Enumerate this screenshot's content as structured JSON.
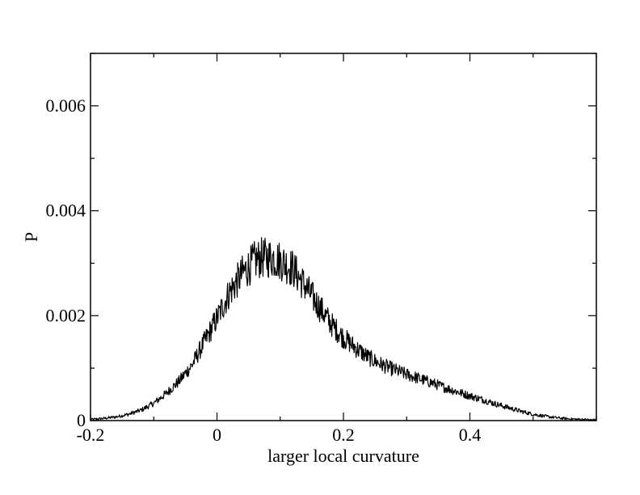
{
  "chart_data": {
    "type": "line",
    "xlabel": "larger local curvature",
    "ylabel": "P",
    "xlim": [
      -0.2,
      0.6
    ],
    "ylim": [
      0,
      0.007
    ],
    "x_ticks": [
      -0.2,
      0,
      0.2,
      0.4
    ],
    "x_tick_labels": [
      "-0.2",
      "0",
      "0.2",
      "0.4"
    ],
    "y_ticks": [
      0,
      0.002,
      0.004,
      0.006
    ],
    "y_tick_labels": [
      "0",
      "0.002",
      "0.004",
      "0.006"
    ],
    "grid": false,
    "legend": "none",
    "line_color": "#000000",
    "series": [
      {
        "x": [
          -0.2,
          -0.18,
          -0.16,
          -0.14,
          -0.12,
          -0.1,
          -0.08,
          -0.06,
          -0.04,
          -0.02,
          0,
          0.02,
          0.04,
          0.06,
          0.07,
          0.08,
          0.09,
          0.1,
          0.12,
          0.14,
          0.16,
          0.18,
          0.2,
          0.22,
          0.24,
          0.26,
          0.28,
          0.3,
          0.32,
          0.34,
          0.36,
          0.38,
          0.4,
          0.42,
          0.44,
          0.46,
          0.48,
          0.5,
          0.52,
          0.54,
          0.56,
          0.58,
          0.6
        ],
        "values": [
          2e-05,
          4e-05,
          7e-05,
          0.00012,
          0.0002,
          0.00033,
          0.00052,
          0.00075,
          0.00105,
          0.0015,
          0.00195,
          0.00245,
          0.0028,
          0.00305,
          0.0031,
          0.0031,
          0.0031,
          0.00305,
          0.0029,
          0.00255,
          0.0022,
          0.00185,
          0.00158,
          0.00138,
          0.0012,
          0.00107,
          0.00097,
          0.00088,
          0.0008,
          0.00072,
          0.00063,
          0.00055,
          0.00047,
          0.0004,
          0.00032,
          0.00025,
          0.00018,
          0.00012,
          8e-05,
          5e-05,
          3e-05,
          2e-05,
          1e-05
        ]
      }
    ]
  }
}
